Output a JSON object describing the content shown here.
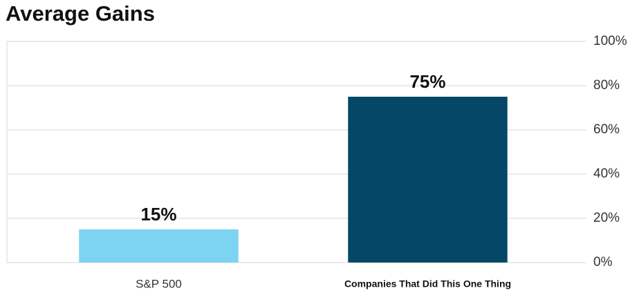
{
  "chart_data": {
    "type": "bar",
    "title": "Average Gains",
    "categories": [
      "S&P 500",
      "Companies That Did This One Thing"
    ],
    "values": [
      15,
      75
    ],
    "value_labels": [
      "15%",
      "75%"
    ],
    "colors": [
      "#7dd3f2",
      "#044767"
    ],
    "ylim": [
      0,
      100
    ],
    "yticks": [
      {
        "value": 0,
        "label": "0%"
      },
      {
        "value": 20,
        "label": "20%"
      },
      {
        "value": 40,
        "label": "40%"
      },
      {
        "value": 60,
        "label": "60%"
      },
      {
        "value": 80,
        "label": "80%"
      },
      {
        "value": 100,
        "label": "100%"
      }
    ],
    "grid": true
  }
}
